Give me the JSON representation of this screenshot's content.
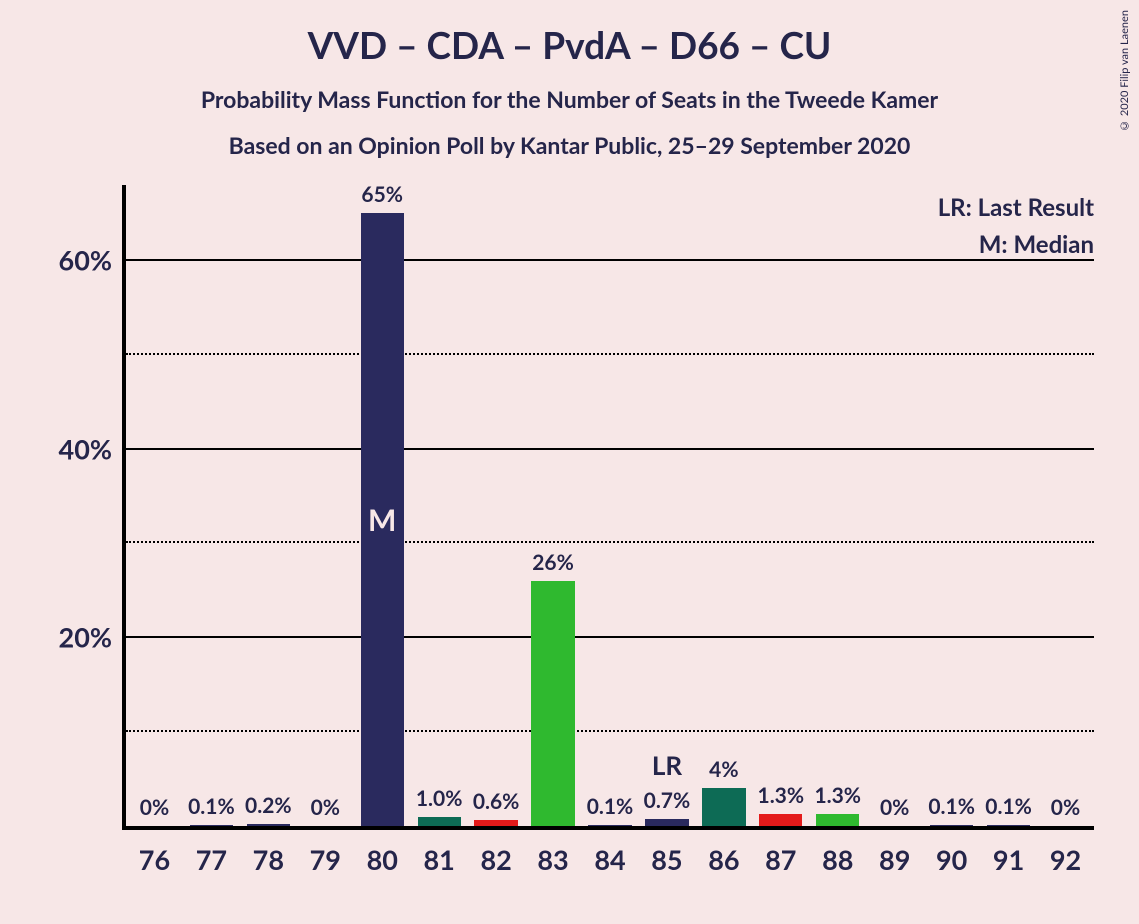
{
  "title": "VVD – CDA – PvdA – D66 – CU",
  "subtitle1": "Probability Mass Function for the Number of Seats in the Tweede Kamer",
  "subtitle2": "Based on an Opinion Poll by Kantar Public, 25–29 September 2020",
  "copyright": "© 2020 Filip van Laenen",
  "legend": {
    "lr": "LR: Last Result",
    "m": "M: Median"
  },
  "chart": {
    "type": "bar",
    "background_color": "#f7e7e7",
    "text_color": "#25254a",
    "title_fontsize": 37,
    "subtitle_fontsize": 23,
    "axis_label_fontsize": 27,
    "bar_label_fontsize": 21,
    "y": {
      "min": 0,
      "max": 68,
      "major_ticks": [
        20,
        40,
        60
      ],
      "minor_ticks": [
        10,
        30,
        50
      ],
      "tick_labels": {
        "20": "20%",
        "40": "40%",
        "60": "60%"
      }
    },
    "categories": [
      "76",
      "77",
      "78",
      "79",
      "80",
      "81",
      "82",
      "83",
      "84",
      "85",
      "86",
      "87",
      "88",
      "89",
      "90",
      "91",
      "92"
    ],
    "bars": [
      {
        "x": "76",
        "value": 0,
        "label": "0%",
        "color": "#2a2a5e"
      },
      {
        "x": "77",
        "value": 0.1,
        "label": "0.1%",
        "color": "#2a2a5e"
      },
      {
        "x": "78",
        "value": 0.2,
        "label": "0.2%",
        "color": "#2a2a5e"
      },
      {
        "x": "79",
        "value": 0,
        "label": "0%",
        "color": "#2a2a5e"
      },
      {
        "x": "80",
        "value": 65,
        "label": "65%",
        "color": "#2a2a5e",
        "marker": "M"
      },
      {
        "x": "81",
        "value": 1.0,
        "label": "1.0%",
        "color": "#0d6b55"
      },
      {
        "x": "82",
        "value": 0.6,
        "label": "0.6%",
        "color": "#e41a1a"
      },
      {
        "x": "83",
        "value": 26,
        "label": "26%",
        "color": "#2fb92f"
      },
      {
        "x": "84",
        "value": 0.1,
        "label": "0.1%",
        "color": "#2a2a5e"
      },
      {
        "x": "85",
        "value": 0.7,
        "label": "0.7%",
        "color": "#2a2a5e",
        "marker": "LR"
      },
      {
        "x": "86",
        "value": 4,
        "label": "4%",
        "color": "#0d6b55"
      },
      {
        "x": "87",
        "value": 1.3,
        "label": "1.3%",
        "color": "#e41a1a"
      },
      {
        "x": "88",
        "value": 1.3,
        "label": "1.3%",
        "color": "#2fb92f"
      },
      {
        "x": "89",
        "value": 0,
        "label": "0%",
        "color": "#2a2a5e"
      },
      {
        "x": "90",
        "value": 0.1,
        "label": "0.1%",
        "color": "#2a2a5e"
      },
      {
        "x": "91",
        "value": 0.1,
        "label": "0.1%",
        "color": "#2a2a5e"
      },
      {
        "x": "92",
        "value": 0,
        "label": "0%",
        "color": "#2a2a5e"
      }
    ],
    "colors": {
      "navy": "#2a2a5e",
      "darkgreen": "#0d6b55",
      "red": "#e41a1a",
      "green": "#2fb92f"
    },
    "lr_label": "LR",
    "m_label": "M"
  }
}
